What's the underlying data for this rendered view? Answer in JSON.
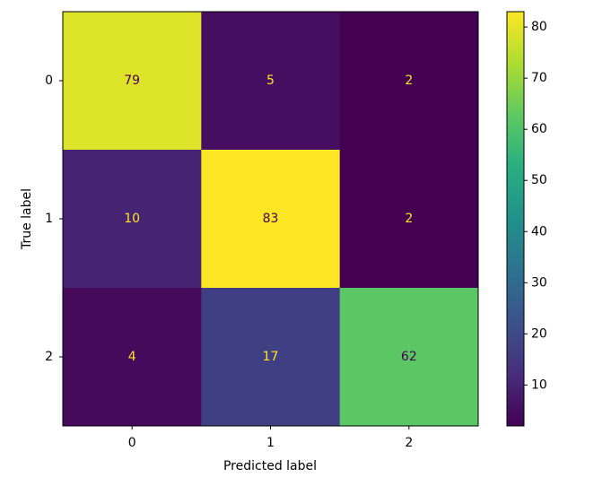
{
  "chart_data": {
    "type": "heatmap",
    "xlabel": "Predicted label",
    "ylabel": "True label",
    "x_categories": [
      "0",
      "1",
      "2"
    ],
    "y_categories": [
      "0",
      "1",
      "2"
    ],
    "values": [
      [
        79,
        5,
        2
      ],
      [
        10,
        83,
        2
      ],
      [
        4,
        17,
        62
      ]
    ],
    "colormap": "viridis",
    "clim": [
      2,
      83
    ],
    "colorbar_ticks": [
      10,
      20,
      30,
      40,
      50,
      60,
      70,
      80
    ]
  }
}
